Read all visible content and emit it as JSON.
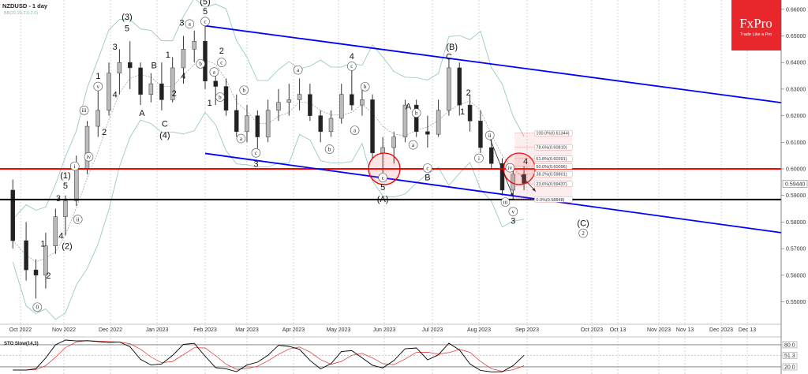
{
  "header": {
    "symbol_title": "NZDUSD - 1 day",
    "indicator": "BB(20,20,2.0,2.0)"
  },
  "logo": {
    "brand": "FxPro",
    "tagline": "Trade Like a Pro",
    "color": "#e8262b"
  },
  "chart_data": {
    "type": "candlestick",
    "symbol": "NZDUSD",
    "timeframe": "1 day",
    "ylim": [
      0.545,
      0.6625
    ],
    "y_ticks": [
      "0.66000",
      "0.65000",
      "0.64000",
      "0.63000",
      "0.62000",
      "0.61000",
      "0.60000",
      "0.59000",
      "0.58000",
      "0.57000",
      "0.56000",
      "0.55000"
    ],
    "x_ticks": [
      "Oct 2022",
      "Nov 2022",
      "Dec 2022",
      "Jan 2023",
      "Feb 2023",
      "Mar 2023",
      "Apr 2023",
      "May 2023",
      "Jun 2023",
      "Jul 2023",
      "Aug 2023",
      "Sep 2023",
      "Oct 2023",
      "Oct 13",
      "Nov 2023",
      "Nov 13",
      "Dec 2023",
      "Dec 13"
    ],
    "current_price": "0.59440",
    "weekly_ohlc": [
      [
        "2022-09-26",
        0.592,
        0.596,
        0.57,
        0.573
      ],
      [
        "2022-10-03",
        0.573,
        0.58,
        0.558,
        0.562
      ],
      [
        "2022-10-10",
        0.562,
        0.566,
        0.5512,
        0.56
      ],
      [
        "2022-10-17",
        0.56,
        0.576,
        0.555,
        0.571
      ],
      [
        "2022-10-24",
        0.571,
        0.585,
        0.568,
        0.582
      ],
      [
        "2022-10-31",
        0.582,
        0.59,
        0.575,
        0.588
      ],
      [
        "2022-11-07",
        0.588,
        0.605,
        0.586,
        0.6
      ],
      [
        "2022-11-14",
        0.6,
        0.618,
        0.598,
        0.616
      ],
      [
        "2022-11-21",
        0.616,
        0.63,
        0.612,
        0.622
      ],
      [
        "2022-11-28",
        0.622,
        0.64,
        0.62,
        0.636
      ],
      [
        "2022-12-05",
        0.636,
        0.645,
        0.628,
        0.64
      ],
      [
        "2022-12-12",
        0.64,
        0.648,
        0.63,
        0.638
      ],
      [
        "2022-12-19",
        0.638,
        0.64,
        0.624,
        0.628
      ],
      [
        "2022-12-26",
        0.628,
        0.636,
        0.625,
        0.632
      ],
      [
        "2023-01-02",
        0.632,
        0.64,
        0.622,
        0.626
      ],
      [
        "2023-01-09",
        0.626,
        0.642,
        0.625,
        0.638
      ],
      [
        "2023-01-16",
        0.638,
        0.65,
        0.632,
        0.645
      ],
      [
        "2023-01-23",
        0.645,
        0.652,
        0.64,
        0.648
      ],
      [
        "2023-01-30",
        0.648,
        0.6538,
        0.63,
        0.633
      ],
      [
        "2023-02-06",
        0.633,
        0.636,
        0.624,
        0.631
      ],
      [
        "2023-02-13",
        0.631,
        0.634,
        0.62,
        0.622
      ],
      [
        "2023-02-20",
        0.622,
        0.628,
        0.612,
        0.614
      ],
      [
        "2023-02-27",
        0.614,
        0.624,
        0.61,
        0.62
      ],
      [
        "2023-03-06",
        0.62,
        0.622,
        0.607,
        0.612
      ],
      [
        "2023-03-13",
        0.612,
        0.626,
        0.61,
        0.622
      ],
      [
        "2023-03-20",
        0.622,
        0.63,
        0.618,
        0.625
      ],
      [
        "2023-03-27",
        0.625,
        0.632,
        0.62,
        0.626
      ],
      [
        "2023-04-03",
        0.626,
        0.634,
        0.622,
        0.628
      ],
      [
        "2023-04-10",
        0.628,
        0.632,
        0.618,
        0.62
      ],
      [
        "2023-04-17",
        0.62,
        0.622,
        0.61,
        0.614
      ],
      [
        "2023-04-24",
        0.614,
        0.622,
        0.612,
        0.619
      ],
      [
        "2023-05-01",
        0.619,
        0.632,
        0.617,
        0.628
      ],
      [
        "2023-05-08",
        0.628,
        0.638,
        0.622,
        0.624
      ],
      [
        "2023-05-15",
        0.624,
        0.632,
        0.62,
        0.626
      ],
      [
        "2023-05-22",
        0.626,
        0.628,
        0.604,
        0.606
      ],
      [
        "2023-05-29",
        0.606,
        0.612,
        0.5985,
        0.608
      ],
      [
        "2023-06-05",
        0.608,
        0.614,
        0.602,
        0.612
      ],
      [
        "2023-06-12",
        0.612,
        0.626,
        0.61,
        0.624
      ],
      [
        "2023-06-19",
        0.624,
        0.626,
        0.612,
        0.614
      ],
      [
        "2023-06-26",
        0.614,
        0.62,
        0.608,
        0.613
      ],
      [
        "2023-07-03",
        0.613,
        0.626,
        0.612,
        0.622
      ],
      [
        "2023-07-10",
        0.622,
        0.6412,
        0.62,
        0.638
      ],
      [
        "2023-07-17",
        0.638,
        0.64,
        0.62,
        0.624
      ],
      [
        "2023-07-24",
        0.624,
        0.628,
        0.614,
        0.618
      ],
      [
        "2023-07-31",
        0.618,
        0.622,
        0.606,
        0.608
      ],
      [
        "2023-08-07",
        0.608,
        0.612,
        0.6,
        0.602
      ],
      [
        "2023-08-14",
        0.602,
        0.604,
        0.59,
        0.592
      ],
      [
        "2023-08-21",
        0.592,
        0.601,
        0.5885,
        0.598
      ],
      [
        "2023-08-28",
        0.598,
        0.601,
        0.592,
        0.5944
      ]
    ],
    "horizontal_lines": [
      {
        "price": 0.6,
        "color": "#ff0000"
      },
      {
        "price": 0.58848,
        "color": "#000000"
      }
    ],
    "channel": {
      "color": "#0000ff",
      "upper": [
        [
          "2023-02-01",
          0.6538
        ],
        [
          "2023-12-31",
          0.6249
        ]
      ],
      "lower": [
        [
          "2023-02-01",
          0.6058
        ],
        [
          "2023-12-31",
          0.576
        ]
      ]
    },
    "highlight_circles": [
      [
        "2023-06-01",
        0.6
      ],
      [
        "2023-08-27",
        0.6
      ]
    ],
    "fibonacci": {
      "from_date": "2023-08-24",
      "to_date": "2023-09-22",
      "levels": [
        {
          "label": "100.0%(0.61344)",
          "price": 0.61344
        },
        {
          "label": "78.6%(0.60810)",
          "price": 0.6081
        },
        {
          "label": "61.8%(0.60391)",
          "price": 0.60391
        },
        {
          "label": "50.0%(0.60096)",
          "price": 0.60096
        },
        {
          "label": "38.2%(0.59801)",
          "price": 0.59801
        },
        {
          "label": "23.6%(0.59437)",
          "price": 0.59437
        },
        {
          "label": "0.0%(0.58848)",
          "price": 0.58848
        }
      ]
    },
    "arrows": [
      [
        [
          "2023-08-08",
          0.6115
        ],
        [
          "2023-08-23",
          0.5895
        ]
      ],
      [
        [
          "2023-08-28",
          0.5975
        ],
        [
          "2023-09-05",
          0.5915
        ]
      ]
    ],
    "wave_labels": [
      {
        "t": "0",
        "d": "2022-10-13",
        "p": 0.548,
        "c": true
      },
      {
        "t": "1",
        "d": "2022-10-17",
        "p": 0.572,
        "c": false
      },
      {
        "t": "2",
        "d": "2022-10-21",
        "p": 0.56,
        "c": false
      },
      {
        "t": "3",
        "d": "2022-10-28",
        "p": 0.589,
        "c": false
      },
      {
        "t": "4",
        "d": "2022-10-30",
        "p": 0.575,
        "c": false
      },
      {
        "t": "(2)",
        "d": "2022-11-03",
        "p": 0.571,
        "c": false
      },
      {
        "t": "5",
        "d": "2022-11-02",
        "p": 0.5955,
        "c": false
      },
      {
        "t": "(1)",
        "d": "2022-11-02",
        "p": 0.5995,
        "c": false
      },
      {
        "t": "i",
        "d": "2022-11-08",
        "p": 0.601,
        "c": true
      },
      {
        "t": "ii",
        "d": "2022-11-10",
        "p": 0.581,
        "c": true
      },
      {
        "t": "iii",
        "d": "2022-11-14",
        "p": 0.622,
        "c": true
      },
      {
        "t": "iv",
        "d": "2022-11-17",
        "p": 0.6045,
        "c": true
      },
      {
        "t": "v",
        "d": "2022-11-23",
        "p": 0.631,
        "c": true
      },
      {
        "t": "1",
        "d": "2022-11-23",
        "p": 0.635,
        "c": false
      },
      {
        "t": "2",
        "d": "2022-11-27",
        "p": 0.614,
        "c": false
      },
      {
        "t": "3",
        "d": "2022-12-04",
        "p": 0.646,
        "c": false
      },
      {
        "t": "4",
        "d": "2022-12-04",
        "p": 0.628,
        "c": false
      },
      {
        "t": "(3)",
        "d": "2022-12-12",
        "p": 0.6572,
        "c": false
      },
      {
        "t": "5",
        "d": "2022-12-12",
        "p": 0.653,
        "c": false
      },
      {
        "t": "A",
        "d": "2022-12-22",
        "p": 0.621,
        "c": false
      },
      {
        "t": "B",
        "d": "2022-12-30",
        "p": 0.639,
        "c": false
      },
      {
        "t": "C",
        "d": "2023-01-06",
        "p": 0.617,
        "c": false
      },
      {
        "t": "(4)",
        "d": "2023-01-06",
        "p": 0.6128,
        "c": false
      },
      {
        "t": "1",
        "d": "2023-01-08",
        "p": 0.643,
        "c": false
      },
      {
        "t": "2",
        "d": "2023-01-12",
        "p": 0.6285,
        "c": false
      },
      {
        "t": "4",
        "d": "2023-01-18",
        "p": 0.635,
        "c": false
      },
      {
        "t": "3",
        "d": "2023-01-17",
        "p": 0.655,
        "c": false
      },
      {
        "t": "a",
        "d": "2023-01-22",
        "p": 0.6545,
        "c": true
      },
      {
        "t": "b",
        "d": "2023-01-29",
        "p": 0.6395,
        "c": true
      },
      {
        "t": "(5)",
        "d": "2023-02-01",
        "p": 0.663,
        "c": false
      },
      {
        "t": "5",
        "d": "2023-02-01",
        "p": 0.6594,
        "c": false
      },
      {
        "t": "c",
        "d": "2023-02-01",
        "p": 0.656,
        "c": true
      },
      {
        "t": "1",
        "d": "2023-02-04",
        "p": 0.625,
        "c": false
      },
      {
        "t": "2",
        "d": "2023-02-12",
        "p": 0.6445,
        "c": false
      },
      {
        "t": "a",
        "d": "2023-02-07",
        "p": 0.64,
        "c": true
      },
      {
        "t": "c",
        "d": "2023-02-12",
        "p": 0.64,
        "c": true
      },
      {
        "t": "b",
        "d": "2023-02-11",
        "p": 0.627,
        "c": true
      },
      {
        "t": "b",
        "d": "2023-02-27",
        "p": 0.6296,
        "c": true
      },
      {
        "t": "a",
        "d": "2023-02-25",
        "p": 0.6114,
        "c": true
      },
      {
        "t": "c",
        "d": "2023-03-07",
        "p": 0.606,
        "c": true
      },
      {
        "t": "3",
        "d": "2023-03-07",
        "p": 0.602,
        "c": false
      },
      {
        "t": "a",
        "d": "2023-04-04",
        "p": 0.6372,
        "c": true
      },
      {
        "t": "b",
        "d": "2023-04-25",
        "p": 0.6074,
        "c": true
      },
      {
        "t": "4",
        "d": "2023-05-10",
        "p": 0.6424,
        "c": false
      },
      {
        "t": "c",
        "d": "2023-05-10",
        "p": 0.6386,
        "c": true
      },
      {
        "t": "b",
        "d": "2023-05-19",
        "p": 0.6309,
        "c": true
      },
      {
        "t": "a",
        "d": "2023-05-12",
        "p": 0.6145,
        "c": true
      },
      {
        "t": "c",
        "d": "2023-05-31",
        "p": 0.5967,
        "c": true
      },
      {
        "t": "5",
        "d": "2023-05-31",
        "p": 0.5932,
        "c": false
      },
      {
        "t": "(A)",
        "d": "2023-05-31",
        "p": 0.5887,
        "c": false
      },
      {
        "t": "A",
        "d": "2023-06-16",
        "p": 0.6236,
        "c": false
      },
      {
        "t": "b",
        "d": "2023-06-21",
        "p": 0.621,
        "c": true
      },
      {
        "t": "a",
        "d": "2023-06-19",
        "p": 0.609,
        "c": true
      },
      {
        "t": "c",
        "d": "2023-06-28",
        "p": 0.6003,
        "c": true
      },
      {
        "t": "B",
        "d": "2023-06-28",
        "p": 0.599,
        "c": false
      },
      {
        "t": "(B)",
        "d": "2023-07-14",
        "p": 0.646,
        "c": false
      },
      {
        "t": "C",
        "d": "2023-07-12",
        "p": 0.6423,
        "c": false
      },
      {
        "t": "2",
        "d": "2023-07-25",
        "p": 0.6288,
        "c": false
      },
      {
        "t": "1",
        "d": "2023-07-21",
        "p": 0.6217,
        "c": false
      },
      {
        "t": "i",
        "d": "2023-08-01",
        "p": 0.604,
        "c": true
      },
      {
        "t": "ii",
        "d": "2023-08-08",
        "p": 0.6126,
        "c": true
      },
      {
        "t": "iv",
        "d": "2023-08-21",
        "p": 0.6004,
        "c": true
      },
      {
        "t": "4",
        "d": "2023-08-31",
        "p": 0.603,
        "c": false
      },
      {
        "t": "iii",
        "d": "2023-08-18",
        "p": 0.5875,
        "c": true
      },
      {
        "t": "v",
        "d": "2023-08-23",
        "p": 0.5866,
        "c": true
      },
      {
        "t": "3",
        "d": "2023-08-23",
        "p": 0.5825,
        "c": false
      },
      {
        "t": "(C)",
        "d": "2023-09-27",
        "p": 0.5796,
        "c": false
      },
      {
        "t": "2",
        "d": "2023-09-27",
        "p": 0.5758,
        "c": true
      }
    ],
    "stochastic": {
      "title": "STO Slow(14,3)",
      "levels": [
        "80.0",
        "20.0"
      ],
      "current": "51.3",
      "colors": {
        "k": "#000000",
        "d": "#e03030"
      }
    }
  }
}
